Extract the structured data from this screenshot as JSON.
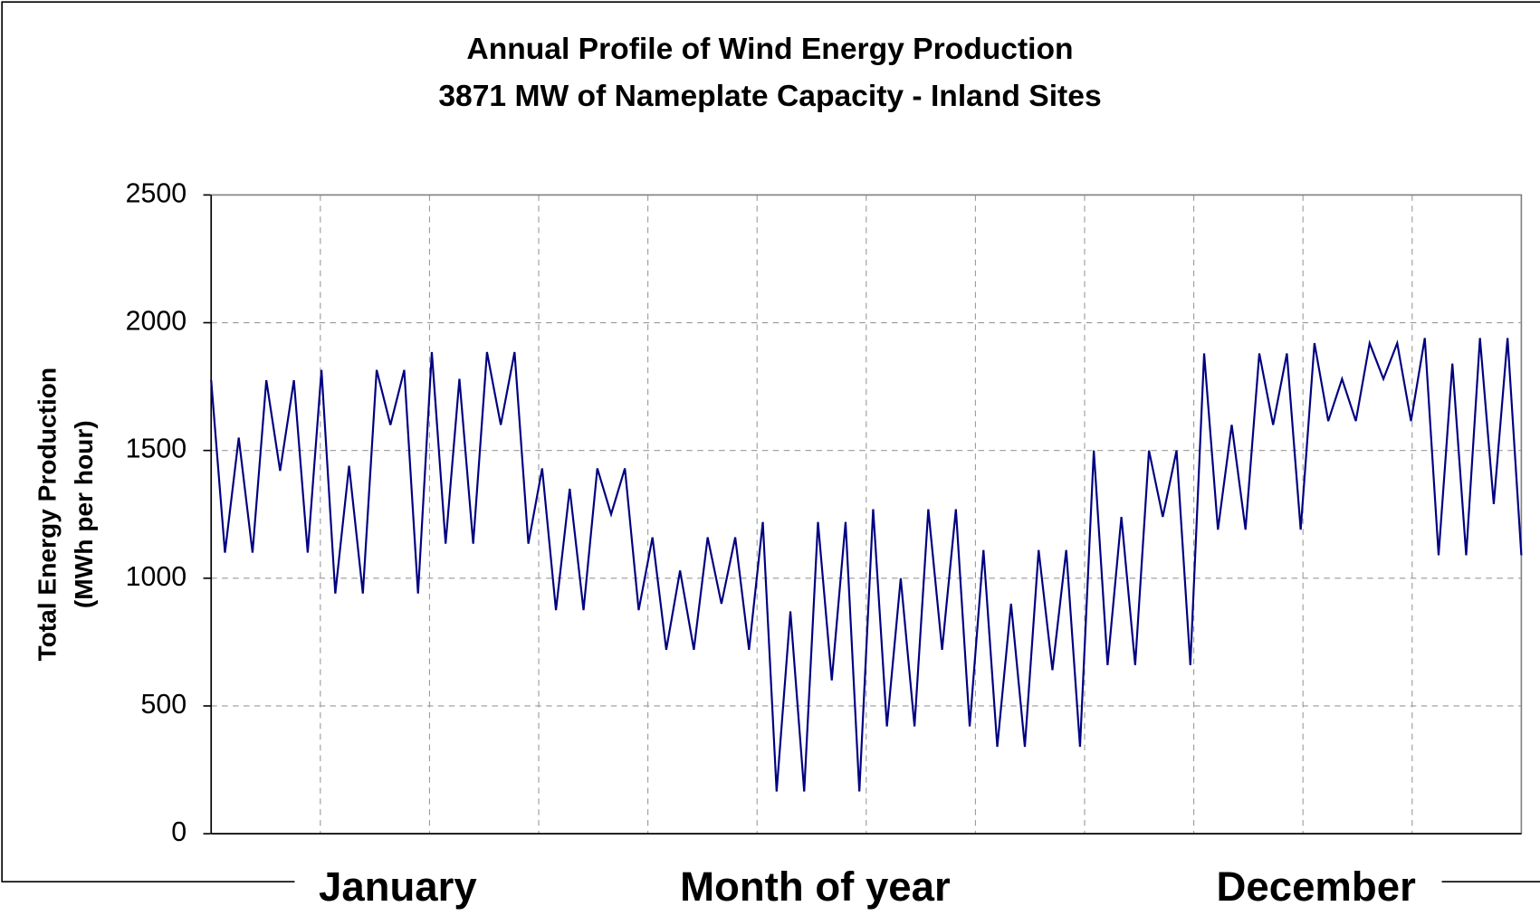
{
  "chart_data": {
    "type": "line",
    "title": "Annual Profile of Wind Energy Production",
    "subtitle": "3871 MW of Nameplate Capacity - Inland Sites",
    "ylabel": [
      "Total Energy Production",
      "(MWh per hour)"
    ],
    "xlabel": "Month of year",
    "annotations": [
      "January",
      "December"
    ],
    "color": "#000080",
    "grid": true,
    "ylim": [
      0,
      2500
    ],
    "yticks": [
      0,
      500,
      1000,
      1500,
      2000,
      2500
    ],
    "xlim": [
      0,
      95
    ],
    "x": [
      0,
      1,
      2,
      3,
      4,
      5,
      6,
      7,
      8,
      9,
      10,
      11,
      12,
      13,
      14,
      15,
      16,
      17,
      18,
      19,
      20,
      21,
      22,
      23,
      24,
      25,
      26,
      27,
      28,
      29,
      30,
      31,
      32,
      33,
      34,
      35,
      36,
      37,
      38,
      39,
      40,
      41,
      42,
      43,
      44,
      45,
      46,
      47,
      48,
      49,
      50,
      51,
      52,
      53,
      54,
      55,
      56,
      57,
      58,
      59,
      60,
      61,
      62,
      63,
      64,
      65,
      66,
      67,
      68,
      69,
      70,
      71,
      72,
      73,
      74,
      75,
      76,
      77,
      78,
      79,
      80,
      81,
      82,
      83,
      84,
      85,
      86,
      87,
      88,
      89,
      90,
      91,
      92,
      93,
      94,
      95
    ],
    "values": [
      1775,
      1100,
      1550,
      1100,
      1775,
      1420,
      1775,
      1100,
      1815,
      940,
      1440,
      940,
      1815,
      1600,
      1815,
      940,
      1885,
      1135,
      1780,
      1135,
      1885,
      1600,
      1885,
      1135,
      1430,
      875,
      1350,
      875,
      1430,
      1250,
      1430,
      875,
      1160,
      720,
      1030,
      720,
      1160,
      900,
      1160,
      720,
      1220,
      165,
      870,
      165,
      1220,
      600,
      1220,
      165,
      1270,
      420,
      1000,
      420,
      1270,
      720,
      1270,
      420,
      1110,
      340,
      900,
      340,
      1110,
      640,
      1110,
      340,
      1500,
      660,
      1240,
      660,
      1500,
      1240,
      1500,
      660,
      1880,
      1190,
      1600,
      1190,
      1880,
      1600,
      1880,
      1190,
      1920,
      1615,
      1780,
      1615,
      1920,
      1780,
      1920,
      1615,
      1940,
      1090,
      1840,
      1090,
      1940,
      1290,
      1940,
      1090
    ]
  }
}
